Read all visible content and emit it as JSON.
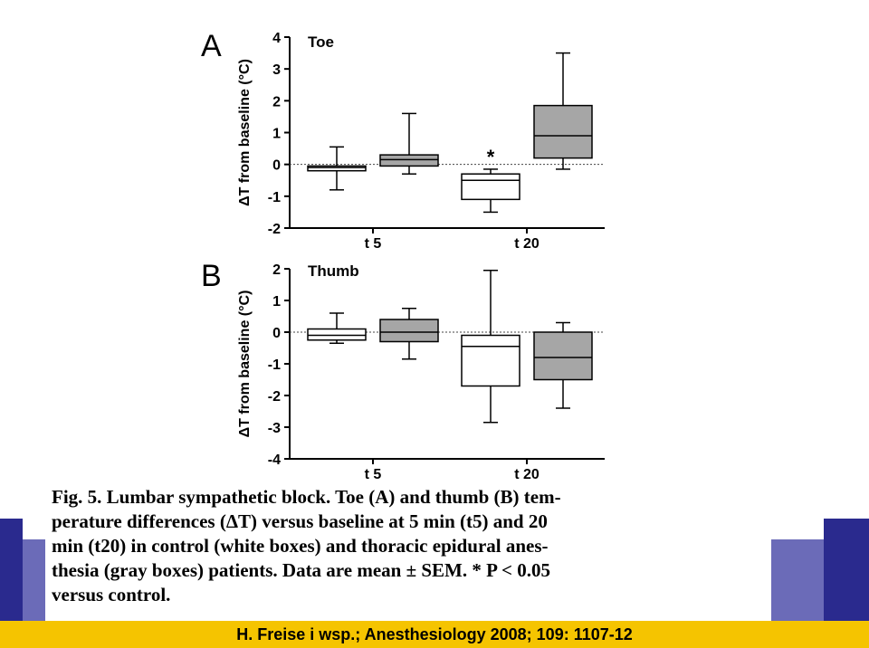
{
  "chart_data": [
    {
      "type": "box",
      "panel_letter": "A",
      "title": "Toe",
      "ylabel": "ΔT from baseline (°C)",
      "ylim": [
        -2,
        4
      ],
      "yticks": [
        "-2",
        "-1",
        "0",
        "1",
        "2",
        "3",
        "4"
      ],
      "categories": [
        "t 5",
        "t 20"
      ],
      "reference_line": 0,
      "series": [
        {
          "name": "control (white boxes)",
          "color": "#ffffff",
          "boxes": [
            {
              "category": "t 5",
              "whisker_low": -0.8,
              "q1": -0.2,
              "median": -0.1,
              "q3": -0.05,
              "whisker_high": 0.55
            },
            {
              "category": "t 20",
              "whisker_low": -1.5,
              "q1": -1.1,
              "median": -0.5,
              "q3": -0.3,
              "whisker_high": -0.15
            }
          ]
        },
        {
          "name": "thoracic epidural anesthesia (gray boxes)",
          "color": "#a6a6a6",
          "boxes": [
            {
              "category": "t 5",
              "whisker_low": -0.3,
              "q1": -0.05,
              "median": 0.15,
              "q3": 0.3,
              "whisker_high": 1.6
            },
            {
              "category": "t 20",
              "whisker_low": -0.15,
              "q1": 0.2,
              "median": 0.9,
              "q3": 1.85,
              "whisker_high": 3.5
            }
          ]
        }
      ],
      "annotations": [
        {
          "text": "*",
          "category": "t 20",
          "series": 0
        }
      ]
    },
    {
      "type": "box",
      "panel_letter": "B",
      "title": "Thumb",
      "ylabel": "ΔT from baseline (°C)",
      "ylim": [
        -4,
        2
      ],
      "yticks": [
        "-4",
        "-3",
        "-2",
        "-1",
        "0",
        "1",
        "2"
      ],
      "categories": [
        "t 5",
        "t 20"
      ],
      "reference_line": 0,
      "series": [
        {
          "name": "control (white boxes)",
          "color": "#ffffff",
          "boxes": [
            {
              "category": "t 5",
              "whisker_low": -0.35,
              "q1": -0.25,
              "median": -0.1,
              "q3": 0.1,
              "whisker_high": 0.6
            },
            {
              "category": "t 20",
              "whisker_low": -2.85,
              "q1": -1.7,
              "median": -0.45,
              "q3": -0.1,
              "whisker_high": 1.95
            }
          ]
        },
        {
          "name": "thoracic epidural anesthesia (gray boxes)",
          "color": "#a6a6a6",
          "boxes": [
            {
              "category": "t 5",
              "whisker_low": -0.85,
              "q1": -0.3,
              "median": 0.0,
              "q3": 0.4,
              "whisker_high": 0.75
            },
            {
              "category": "t 20",
              "whisker_low": -2.4,
              "q1": -1.5,
              "median": -0.8,
              "q3": 0.0,
              "whisker_high": 0.3
            }
          ]
        }
      ],
      "annotations": []
    }
  ],
  "caption": {
    "lines": [
      "Fig. 5. Lumbar sympathetic block. Toe (A) and thumb (B) tem-",
      "perature differences (ΔT) versus baseline at 5 min (t5) and 20",
      "min (t20) in control (white boxes) and thoracic epidural anes-",
      "thesia (gray boxes) patients. Data are mean ± SEM. * P < 0.05",
      "versus control."
    ]
  },
  "footer": {
    "citation": "H. Freise i wsp.; Anesthesiology 2008; 109: 1107-12"
  },
  "colors": {
    "slide_blue": "#2a2a8e",
    "slide_accent": "#6b6bb8",
    "footer_bar": "#f5c400"
  }
}
